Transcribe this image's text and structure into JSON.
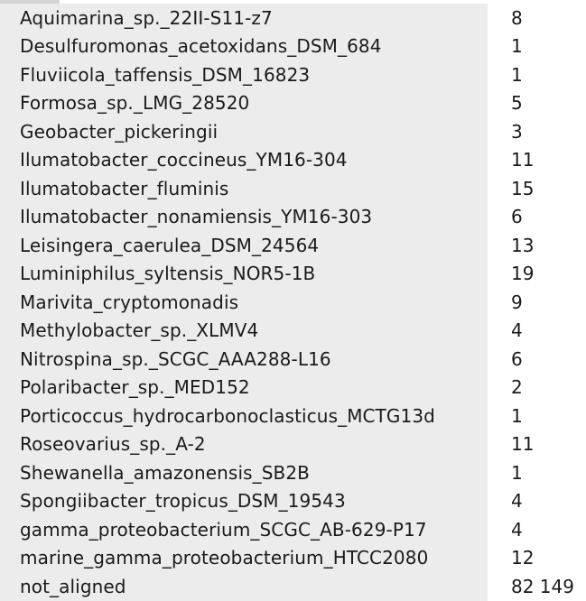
{
  "rows": [
    {
      "name": "Aquimarina_sp._22II-S11-z7",
      "count": "8"
    },
    {
      "name": "Desulfuromonas_acetoxidans_DSM_684",
      "count": "1"
    },
    {
      "name": "Fluviicola_taffensis_DSM_16823",
      "count": "1"
    },
    {
      "name": "Formosa_sp._LMG_28520",
      "count": "5"
    },
    {
      "name": "Geobacter_pickeringii",
      "count": "3"
    },
    {
      "name": "Ilumatobacter_coccineus_YM16-304",
      "count": "11"
    },
    {
      "name": "Ilumatobacter_fluminis",
      "count": "15"
    },
    {
      "name": "Ilumatobacter_nonamiensis_YM16-303",
      "count": "6"
    },
    {
      "name": "Leisingera_caerulea_DSM_24564",
      "count": "13"
    },
    {
      "name": "Luminiphilus_syltensis_NOR5-1B",
      "count": "19"
    },
    {
      "name": "Marivita_cryptomonadis",
      "count": "9"
    },
    {
      "name": "Methylobacter_sp._XLMV4",
      "count": "4"
    },
    {
      "name": "Nitrospina_sp._SCGC_AAA288-L16",
      "count": "6"
    },
    {
      "name": "Polaribacter_sp._MED152",
      "count": "2"
    },
    {
      "name": "Porticoccus_hydrocarbonoclasticus_MCTG13d",
      "count": "1"
    },
    {
      "name": "Roseovarius_sp._A-2",
      "count": "11"
    },
    {
      "name": "Shewanella_amazonensis_SB2B",
      "count": "1"
    },
    {
      "name": "Spongiibacter_tropicus_DSM_19543",
      "count": "4"
    },
    {
      "name": "gamma_proteobacterium_SCGC_AB-629-P17",
      "count": "4"
    },
    {
      "name": "marine_gamma_proteobacterium_HTCC2080",
      "count": "12"
    },
    {
      "name": "not_aligned",
      "count": "82 149"
    }
  ]
}
